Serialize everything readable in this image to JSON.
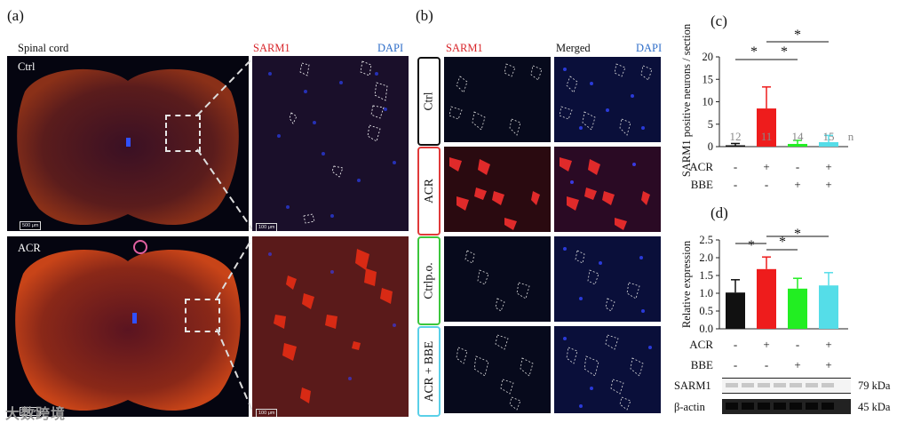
{
  "panels": {
    "a": "(a)",
    "b": "(b)",
    "c": "(c)",
    "d": "(d)"
  },
  "panel_a": {
    "spinal_label": "Spinal cord",
    "sarm1_label": "SARM1",
    "dapi_label": "DAPI",
    "ctrl_label": "Ctrl",
    "acr_label": "ACR",
    "scale_big": "500 μm",
    "scale_small": "100 μm"
  },
  "panel_b": {
    "sarm1_label": "SARM1",
    "merged_label": "Merged",
    "dapi_label": "DAPI",
    "rows": [
      {
        "label": "Ctrl",
        "color": "#111111"
      },
      {
        "label": "ACR",
        "color": "#e03a3a"
      },
      {
        "label": "Ctrlp.o.",
        "color": "#3cc63c"
      },
      {
        "label": "ACR + BBE",
        "color": "#5ad0e8"
      }
    ]
  },
  "colors": {
    "ctrl": "#111111",
    "acr": "#ee1c1c",
    "bbe": "#22ee22",
    "acr_bbe": "#55dde8"
  },
  "chart_data": [
    {
      "type": "bar",
      "ylabel": "SARM1 positive neurons / section",
      "ylim": [
        0,
        20
      ],
      "yticks": [
        0,
        5,
        10,
        15,
        20
      ],
      "categories": [
        "Ctrl",
        "ACR",
        "BBE",
        "ACR+BBE"
      ],
      "values": [
        0.3,
        8.5,
        0.6,
        1.0
      ],
      "errors": [
        0.4,
        4.8,
        0.8,
        1.5
      ],
      "n": [
        "12",
        "11",
        "14",
        "15"
      ],
      "n_label": "n",
      "acr_row": [
        "-",
        "+",
        "-",
        "+"
      ],
      "bbe_row": [
        "-",
        "-",
        "+",
        "+"
      ],
      "acr_label": "ACR",
      "bbe_label": "BBE",
      "significance": "*"
    },
    {
      "type": "bar",
      "ylabel": "Relative expression",
      "ylim": [
        0,
        2.5
      ],
      "yticks": [
        "0.0",
        "0.5",
        "1.0",
        "1.5",
        "2.0",
        "2.5"
      ],
      "categories": [
        "Ctrl",
        "ACR",
        "BBE",
        "ACR+BBE"
      ],
      "values": [
        1.02,
        1.68,
        1.13,
        1.22
      ],
      "errors": [
        0.36,
        0.34,
        0.29,
        0.36
      ],
      "acr_row": [
        "-",
        "+",
        "-",
        "+"
      ],
      "bbe_row": [
        "-",
        "-",
        "+",
        "+"
      ],
      "acr_label": "ACR",
      "bbe_label": "BBE",
      "significance": "*",
      "blots": [
        {
          "name": "SARM1",
          "kda": "79 kDa"
        },
        {
          "name": "β-actin",
          "kda": "45 kDa"
        }
      ]
    }
  ],
  "watermark": "大数跨境"
}
